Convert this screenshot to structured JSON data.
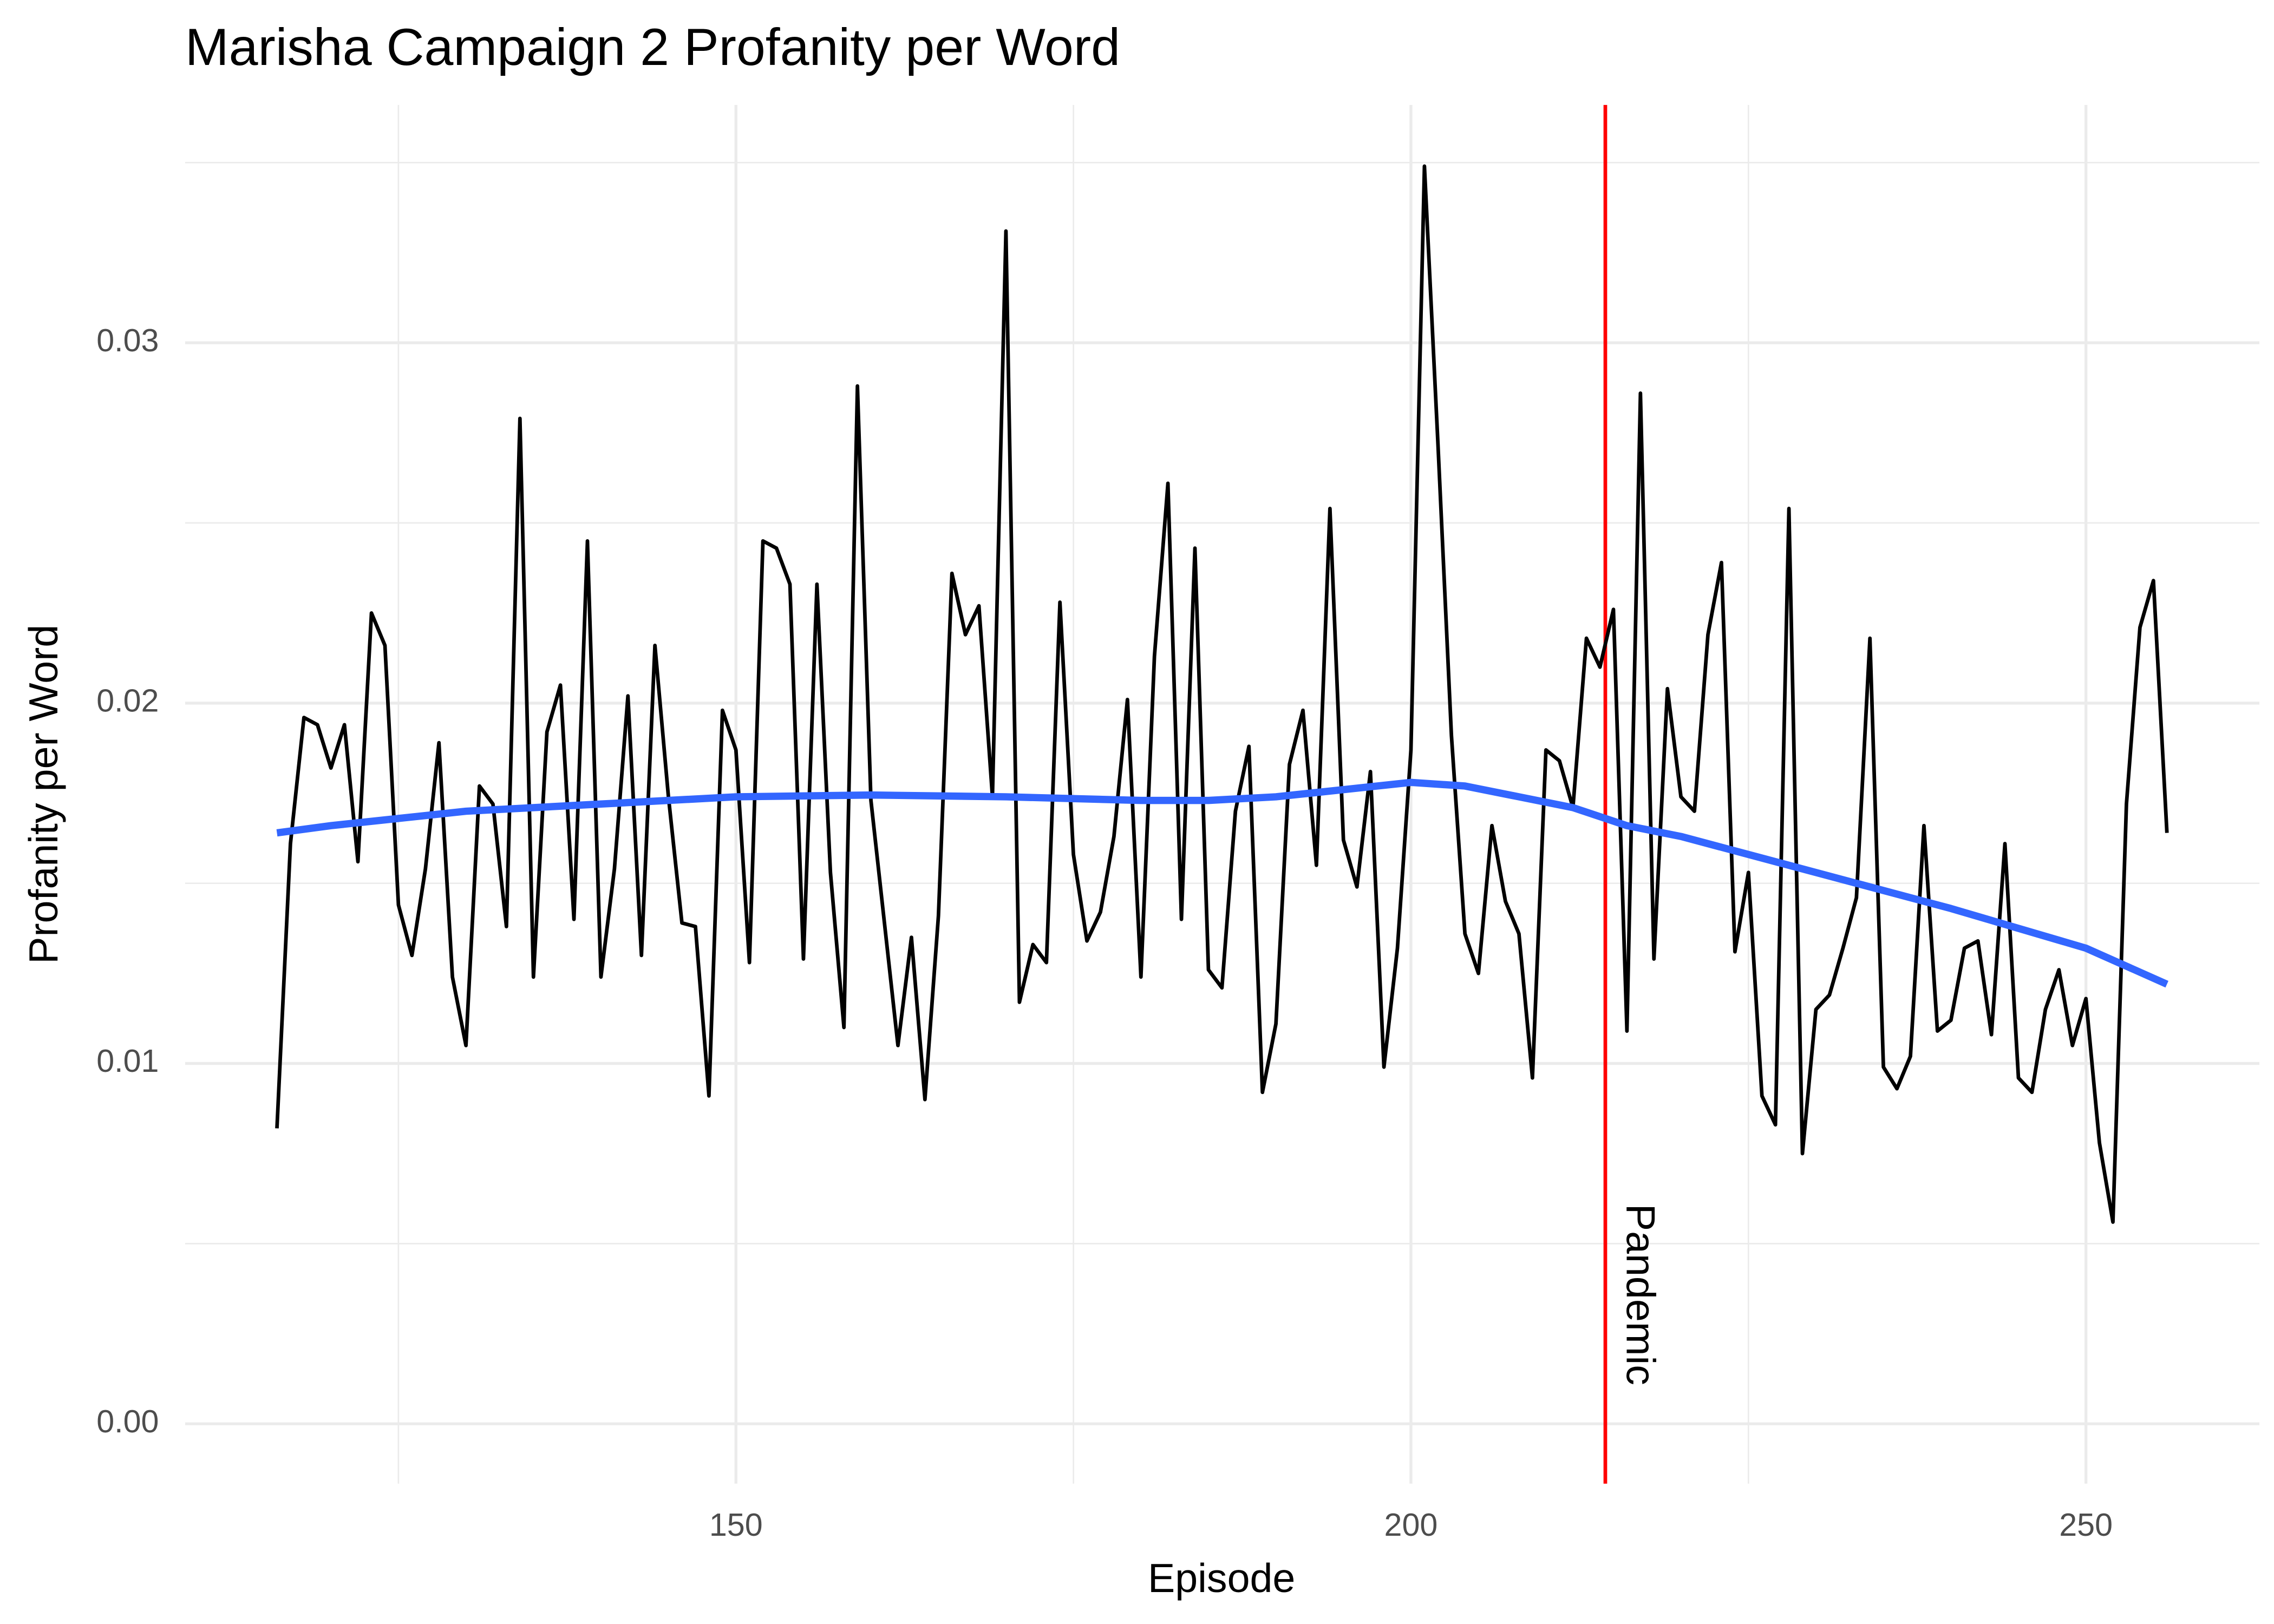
{
  "chart_data": {
    "type": "line",
    "title": "Marisha Campaign 2 Profanity per Word",
    "xlabel": "Episode",
    "ylabel": "Profanity per Word",
    "xlim": [
      109.2,
      262.85
    ],
    "ylim": [
      -0.00166,
      0.0366
    ],
    "xticks": [
      150,
      200,
      250
    ],
    "yticks": [
      {
        "value": 0,
        "label": "0.00"
      },
      {
        "value": 0.01,
        "label": "0.01"
      },
      {
        "value": 0.02,
        "label": "0.02"
      },
      {
        "value": 0.03,
        "label": "0.03"
      }
    ],
    "x_minor_ticks": [
      125,
      175,
      225
    ],
    "y_minor_ticks": [
      0.005,
      0.015,
      0.025,
      0.035
    ],
    "grid": true,
    "series": [
      {
        "color": "#000000",
        "x": [
          116,
          117,
          118,
          119,
          120,
          121,
          122,
          123,
          124,
          125,
          126,
          127,
          128,
          129,
          130,
          131,
          132,
          133,
          134,
          135,
          136,
          137,
          138,
          139,
          140,
          141,
          142,
          143,
          144,
          145,
          146,
          147,
          148,
          149,
          150,
          151,
          152,
          153,
          154,
          155,
          156,
          157,
          158,
          159,
          160,
          161,
          162,
          163,
          164,
          165,
          166,
          167,
          168,
          169,
          170,
          171,
          172,
          173,
          174,
          175,
          176,
          177,
          178,
          179,
          180,
          181,
          182,
          183,
          184,
          185,
          186,
          187,
          188,
          189,
          190,
          191,
          192,
          193,
          194,
          195,
          196,
          197,
          198,
          199,
          200,
          201,
          202,
          203,
          204,
          205,
          206,
          207,
          208,
          209,
          210,
          211,
          212,
          213,
          214,
          215,
          216,
          217,
          218,
          219,
          220,
          221,
          222,
          223,
          224,
          225,
          226,
          227,
          228,
          229,
          230,
          231,
          232,
          233,
          234,
          235,
          236,
          237,
          238,
          239,
          240,
          241,
          242,
          243,
          244,
          245,
          246,
          247,
          248,
          249,
          250,
          251,
          252,
          253,
          254,
          255,
          256
        ],
        "values": [
          0.0082,
          0.0161,
          0.0196,
          0.0194,
          0.0182,
          0.0194,
          0.0156,
          0.0225,
          0.0216,
          0.0144,
          0.013,
          0.0154,
          0.0189,
          0.0124,
          0.0105,
          0.0177,
          0.0172,
          0.0138,
          0.0279,
          0.0124,
          0.0192,
          0.0205,
          0.014,
          0.0245,
          0.0124,
          0.0154,
          0.0202,
          0.013,
          0.0216,
          0.0174,
          0.0139,
          0.0138,
          0.0091,
          0.0198,
          0.0187,
          0.0128,
          0.0245,
          0.0243,
          0.0233,
          0.0129,
          0.0233,
          0.0153,
          0.011,
          0.0288,
          0.0173,
          0.0139,
          0.0105,
          0.0135,
          0.009,
          0.0141,
          0.0236,
          0.0219,
          0.0227,
          0.0174,
          0.0331,
          0.0117,
          0.0133,
          0.0128,
          0.0228,
          0.0158,
          0.0134,
          0.0142,
          0.0163,
          0.0201,
          0.0124,
          0.0213,
          0.0261,
          0.014,
          0.0243,
          0.0126,
          0.0121,
          0.017,
          0.0188,
          0.0092,
          0.0111,
          0.0183,
          0.0198,
          0.0155,
          0.0254,
          0.0162,
          0.0149,
          0.0181,
          0.0099,
          0.0132,
          0.0187,
          0.0349,
          0.0272,
          0.0191,
          0.0136,
          0.0125,
          0.0166,
          0.0145,
          0.0136,
          0.0096,
          0.0187,
          0.0184,
          0.0171,
          0.0218,
          0.021,
          0.0226,
          0.0109,
          0.0286,
          0.0129,
          0.0204,
          0.0174,
          0.017,
          0.0219,
          0.0239,
          0.0131,
          0.0153,
          0.0091,
          0.0083,
          0.0254,
          0.0075,
          0.0115,
          0.0119,
          0.0132,
          0.0146,
          0.0218,
          0.0099,
          0.0093,
          0.0102,
          0.0166,
          0.0109,
          0.0112,
          0.0132,
          0.0134,
          0.0108,
          0.0161,
          0.0096,
          0.0092,
          0.0115,
          0.0126,
          0.0105,
          0.0118,
          0.0078,
          0.0056,
          0.0172,
          0.0221,
          0.0234,
          0.0164
        ]
      },
      {
        "color": "#3366ff",
        "x": [
          116,
          120,
          130,
          140,
          150,
          160,
          170,
          180,
          185,
          190,
          195,
          200,
          204,
          208,
          212,
          216,
          220,
          230,
          240,
          250,
          256
        ],
        "values": [
          0.0164,
          0.0166,
          0.017,
          0.0172,
          0.0174,
          0.01745,
          0.0174,
          0.0173,
          0.0173,
          0.0174,
          0.0176,
          0.0178,
          0.0177,
          0.0174,
          0.0171,
          0.0166,
          0.0163,
          0.0153,
          0.0143,
          0.0132,
          0.0122
        ]
      }
    ],
    "vline": {
      "x": 214.4,
      "label": "Pandemic",
      "color": "#ff0000"
    }
  }
}
